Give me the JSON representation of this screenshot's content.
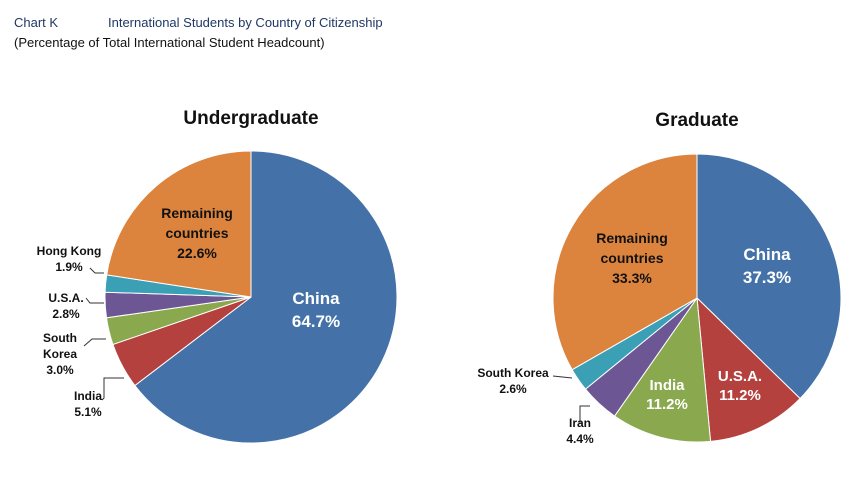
{
  "header": {
    "chart_id": "Chart K",
    "title": "International Students by Country of Citizenship",
    "subtitle": "(Percentage of Total International Student Headcount)"
  },
  "colors": {
    "China": "#4472a8",
    "U.S.A.": "#b5413f",
    "India": "#8aa94e",
    "South Korea": "#8aa94e",
    "purple": "#6d5694",
    "teal": "#3b9fb5",
    "Remaining countries": "#dc843d"
  },
  "chart_data": [
    {
      "type": "pie",
      "title": "Undergraduate",
      "slices": [
        {
          "label": "China",
          "value": 64.7,
          "text": "64.7%",
          "color": "#4472a8"
        },
        {
          "label": "India",
          "value": 5.1,
          "text": "5.1%",
          "color": "#b5413f"
        },
        {
          "label": "South Korea",
          "value": 3.0,
          "text": "3.0%",
          "color": "#8aa94e"
        },
        {
          "label": "U.S.A.",
          "value": 2.8,
          "text": "2.8%",
          "color": "#6d5694"
        },
        {
          "label": "Hong Kong",
          "value": 1.9,
          "text": "1.9%",
          "color": "#3b9fb5"
        },
        {
          "label": "Remaining countries",
          "value": 22.6,
          "text": "22.6%",
          "color": "#dc843d"
        }
      ]
    },
    {
      "type": "pie",
      "title": "Graduate",
      "slices": [
        {
          "label": "China",
          "value": 37.3,
          "text": "37.3%",
          "color": "#4472a8"
        },
        {
          "label": "U.S.A.",
          "value": 11.2,
          "text": "11.2%",
          "color": "#b5413f"
        },
        {
          "label": "India",
          "value": 11.2,
          "text": "11.2%",
          "color": "#8aa94e"
        },
        {
          "label": "Iran",
          "value": 4.4,
          "text": "4.4%",
          "color": "#6d5694"
        },
        {
          "label": "South Korea",
          "value": 2.6,
          "text": "2.6%",
          "color": "#3b9fb5"
        },
        {
          "label": "Remaining countries",
          "value": 33.3,
          "text": "33.3%",
          "color": "#dc843d"
        }
      ]
    }
  ],
  "labels": {
    "south": "South",
    "korea": "Korea",
    "remaining": "Remaining",
    "countries": "countries"
  }
}
